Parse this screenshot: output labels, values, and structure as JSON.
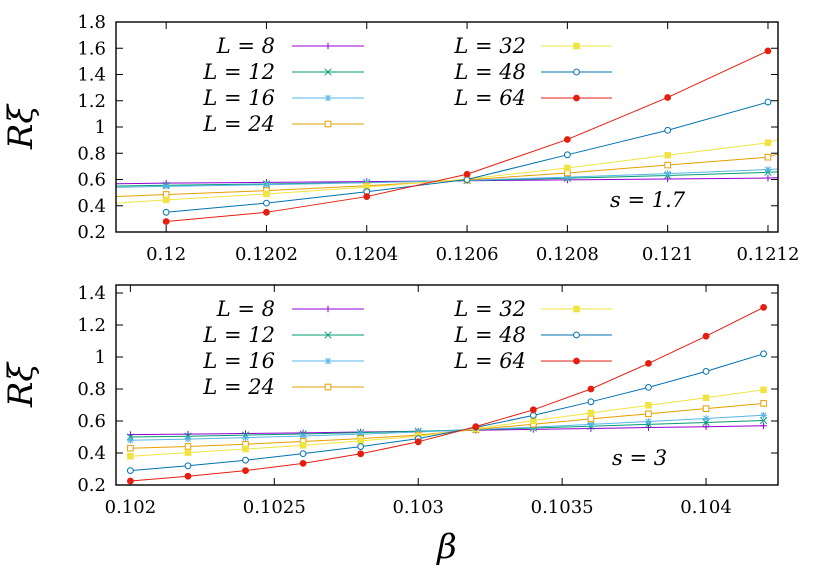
{
  "chart_data": [
    {
      "type": "line",
      "title": "",
      "ylabel": "Rξ",
      "xlabel": "",
      "xlim": [
        0.1199,
        0.12122
      ],
      "ylim": [
        0.2,
        1.8
      ],
      "xticks": [
        0.12,
        0.1202,
        0.1204,
        0.1206,
        0.1208,
        0.121,
        0.1212
      ],
      "xtick_labels": [
        "0.12",
        "0.1202",
        "0.1204",
        "0.1206",
        "0.1208",
        "0.121",
        "0.1212"
      ],
      "yticks": [
        0.2,
        0.4,
        0.6,
        0.8,
        1,
        1.2,
        1.4,
        1.6,
        1.8
      ],
      "ytick_labels": [
        "0.2",
        "0.4",
        "0.6",
        "0.8",
        "1",
        "1.2",
        "1.4",
        "1.6",
        "1.8"
      ],
      "annotation": "s = 1.7",
      "x": [
        0.1199,
        0.12,
        0.1202,
        0.1204,
        0.1206,
        0.1208,
        0.121,
        0.1212,
        0.12122
      ],
      "series": [
        {
          "name": "L = 8",
          "color": "#9400d3",
          "marker": "plus",
          "values": [
            0.568,
            0.572,
            0.578,
            0.584,
            0.59,
            0.597,
            0.604,
            0.611,
            0.613
          ]
        },
        {
          "name": "L = 12",
          "color": "#009e73",
          "marker": "cross",
          "values": [
            0.55,
            0.556,
            0.566,
            0.577,
            0.592,
            0.61,
            0.63,
            0.655,
            0.658
          ]
        },
        {
          "name": "L = 16",
          "color": "#56b4e9",
          "marker": "star",
          "values": [
            0.54,
            0.548,
            0.56,
            0.575,
            0.594,
            0.618,
            0.645,
            0.676,
            0.68
          ]
        },
        {
          "name": "L = 24",
          "color": "#e69f00",
          "marker": "square-open",
          "values": [
            0.47,
            0.486,
            0.515,
            0.552,
            0.597,
            0.65,
            0.71,
            0.77,
            0.795
          ]
        },
        {
          "name": "L = 32",
          "color": "#f0e442",
          "marker": "square-filled",
          "values": [
            0.42,
            0.445,
            0.49,
            0.542,
            0.604,
            0.688,
            0.785,
            0.88,
            0.905
          ]
        },
        {
          "name": "L = 48",
          "color": "#0072b2",
          "marker": "circle-open",
          "values": [
            null,
            0.35,
            0.42,
            0.507,
            0.6,
            0.788,
            0.975,
            1.19,
            null
          ]
        },
        {
          "name": "L = 64",
          "color": "#e51e10",
          "marker": "circle-filled",
          "values": [
            null,
            0.28,
            0.35,
            0.47,
            0.64,
            0.905,
            1.225,
            1.58,
            null
          ]
        }
      ]
    },
    {
      "type": "line",
      "title": "",
      "ylabel": "Rξ",
      "xlabel": "β",
      "xlim": [
        0.10195,
        0.10425
      ],
      "ylim": [
        0.2,
        1.45
      ],
      "xticks": [
        0.102,
        0.1025,
        0.103,
        0.1035,
        0.104
      ],
      "xtick_labels": [
        "0.102",
        "0.1025",
        "0.103",
        "0.1035",
        "0.104"
      ],
      "yticks": [
        0.2,
        0.4,
        0.6,
        0.8,
        1,
        1.2,
        1.4
      ],
      "ytick_labels": [
        "0.2",
        "0.4",
        "0.6",
        "0.8",
        "1",
        "1.2",
        "1.4"
      ],
      "annotation": "s = 3",
      "x": [
        0.102,
        0.1022,
        0.1024,
        0.1026,
        0.1028,
        0.103,
        0.1032,
        0.1034,
        0.1036,
        0.1038,
        0.104,
        0.1042
      ],
      "series": [
        {
          "name": "L = 8",
          "color": "#9400d3",
          "marker": "plus",
          "values": [
            0.515,
            0.518,
            0.522,
            0.526,
            0.531,
            0.536,
            0.542,
            0.548,
            0.553,
            0.559,
            0.564,
            0.57
          ]
        },
        {
          "name": "L = 12",
          "color": "#009e73",
          "marker": "cross",
          "values": [
            0.5,
            0.505,
            0.512,
            0.519,
            0.527,
            0.536,
            0.546,
            0.556,
            0.567,
            0.579,
            0.591,
            0.603
          ]
        },
        {
          "name": "L = 16",
          "color": "#56b4e9",
          "marker": "star",
          "values": [
            0.48,
            0.487,
            0.496,
            0.506,
            0.518,
            0.531,
            0.546,
            0.562,
            0.579,
            0.597,
            0.616,
            0.636
          ]
        },
        {
          "name": "L = 24",
          "color": "#e69f00",
          "marker": "square-open",
          "values": [
            0.43,
            0.441,
            0.455,
            0.472,
            0.49,
            0.512,
            0.547,
            0.58,
            0.613,
            0.645,
            0.677,
            0.71
          ]
        },
        {
          "name": "L = 32",
          "color": "#f0e442",
          "marker": "square-filled",
          "values": [
            0.38,
            0.402,
            0.425,
            0.448,
            0.476,
            0.504,
            0.552,
            0.602,
            0.65,
            0.698,
            0.745,
            0.795
          ]
        },
        {
          "name": "L = 48",
          "color": "#0072b2",
          "marker": "circle-open",
          "values": [
            0.29,
            0.32,
            0.355,
            0.396,
            0.44,
            0.49,
            0.56,
            0.635,
            0.72,
            0.81,
            0.91,
            1.02
          ]
        },
        {
          "name": "L = 64",
          "color": "#e51e10",
          "marker": "circle-filled",
          "values": [
            0.225,
            0.255,
            0.29,
            0.335,
            0.395,
            0.47,
            0.565,
            0.67,
            0.8,
            0.96,
            1.13,
            1.31
          ]
        }
      ]
    }
  ]
}
